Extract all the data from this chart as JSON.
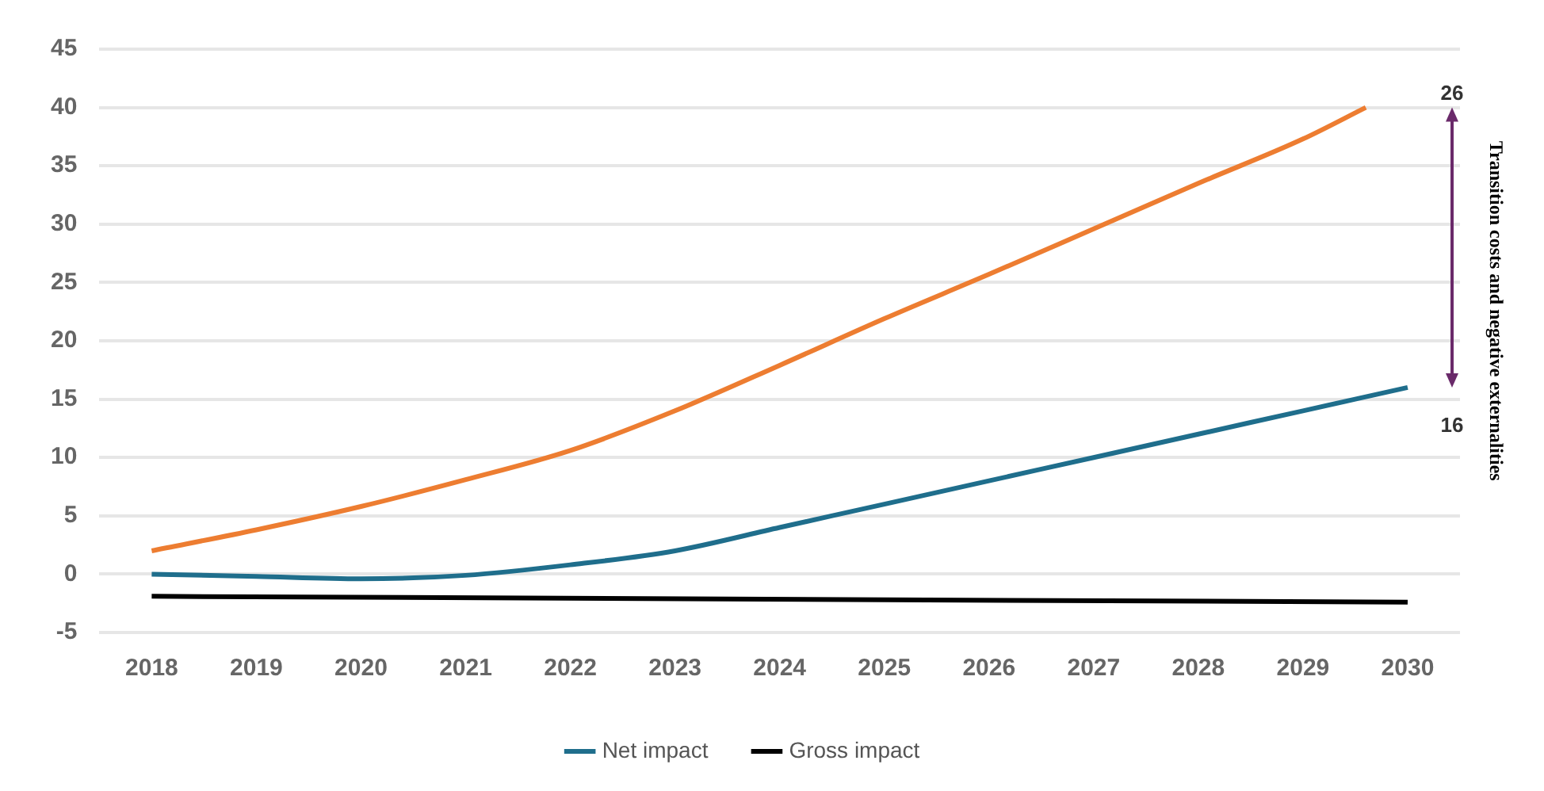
{
  "chart_data": {
    "type": "line",
    "xlim": [
      2017.5,
      2030.5
    ],
    "xticks": [
      2018,
      2019,
      2020,
      2021,
      2022,
      2023,
      2024,
      2025,
      2026,
      2027,
      2028,
      2029,
      2030
    ],
    "ylim": [
      -5,
      45
    ],
    "yticks": [
      -5,
      0,
      5,
      10,
      15,
      20,
      25,
      30,
      35,
      40,
      45
    ],
    "grid": "y",
    "legend": "bottom",
    "marker": "none",
    "line_style": "solid",
    "series": [
      {
        "color": "#ed7d31",
        "x": [
          2018,
          2019,
          2020,
          2021,
          2022,
          2023,
          2024,
          2025,
          2026,
          2027,
          2028,
          2029,
          2029.6
        ],
        "values": [
          2.0,
          3.8,
          5.8,
          8.1,
          10.6,
          14.0,
          17.9,
          21.9,
          25.7,
          29.6,
          33.5,
          37.3,
          40.0
        ]
      },
      {
        "name": "Net impact",
        "color": "#1f6e8c",
        "x": [
          2018,
          2019,
          2020,
          2021,
          2022,
          2023,
          2024,
          2025,
          2026,
          2027,
          2028,
          2029,
          2030
        ],
        "values": [
          0.0,
          -0.2,
          -0.4,
          -0.1,
          0.8,
          2.0,
          4.0,
          6.0,
          8.0,
          10.0,
          12.0,
          14.0,
          16.0
        ]
      },
      {
        "name": "Gross impact",
        "color": "#000000",
        "x": [
          2018,
          2030
        ],
        "values": [
          -1.9,
          -2.4
        ]
      }
    ],
    "annotations": [
      "26",
      "16",
      "Transition costs and negative externalities"
    ]
  }
}
